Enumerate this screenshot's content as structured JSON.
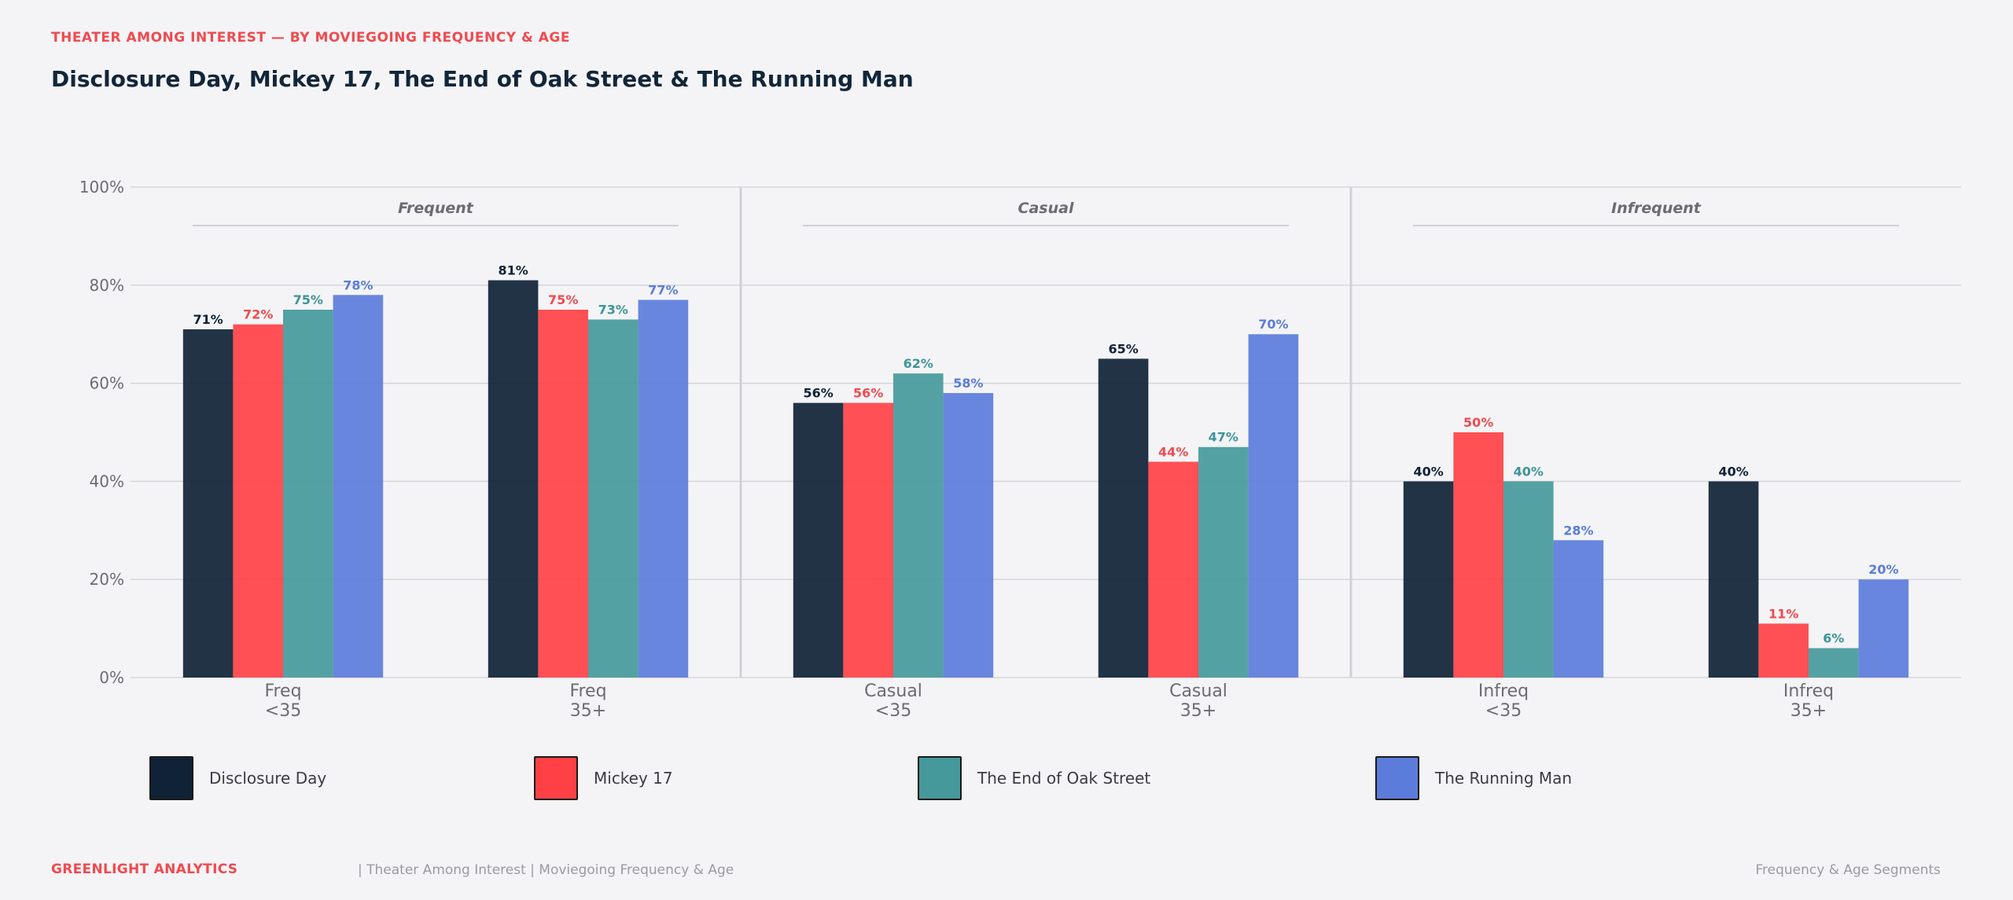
{
  "header": {
    "eyebrow": "THEATER AMONG INTEREST — BY MOVIEGOING FREQUENCY & AGE",
    "title": "Disclosure Day, Mickey 17, The End of Oak Street & The Running Man"
  },
  "chart_data": {
    "type": "bar",
    "categories": [
      [
        "Freq",
        "<35"
      ],
      [
        "Freq",
        "35+"
      ],
      [
        "Casual",
        "<35"
      ],
      [
        "Casual",
        "35+"
      ],
      [
        "Infreq",
        "<35"
      ],
      [
        "Infreq",
        "35+"
      ]
    ],
    "groups": [
      {
        "label": "Frequent",
        "categories": [
          0,
          1
        ]
      },
      {
        "label": "Casual",
        "categories": [
          2,
          3
        ]
      },
      {
        "label": "Infrequent",
        "categories": [
          4,
          5
        ]
      }
    ],
    "series": [
      {
        "name": "Disclosure Day",
        "color": "#0f2236",
        "label_color": "#0f2236",
        "values": [
          71,
          81,
          56,
          65,
          40,
          40
        ]
      },
      {
        "name": "Mickey 17",
        "color": "#ff4146",
        "label_color": "#f04a4f",
        "values": [
          72,
          75,
          56,
          44,
          50,
          11
        ]
      },
      {
        "name": "The End of Oak Street",
        "color": "#45999b",
        "label_color": "#3e9497",
        "values": [
          75,
          73,
          62,
          47,
          40,
          6
        ]
      },
      {
        "name": "The Running Man",
        "color": "#5b7cda",
        "label_color": "#5b7cda",
        "values": [
          78,
          77,
          58,
          70,
          28,
          20
        ]
      }
    ],
    "y_ticks": [
      "0%",
      "20%",
      "40%",
      "60%",
      "80%",
      "100%"
    ],
    "ylim": [
      0,
      100
    ],
    "value_suffix": "%",
    "grid": true,
    "legend_position": "bottom"
  },
  "footer": {
    "brand": "GREENLIGHT ANALYTICS",
    "meta": "|  Theater Among Interest  |  Moviegoing Frequency & Age",
    "right": "Frequency & Age Segments"
  }
}
